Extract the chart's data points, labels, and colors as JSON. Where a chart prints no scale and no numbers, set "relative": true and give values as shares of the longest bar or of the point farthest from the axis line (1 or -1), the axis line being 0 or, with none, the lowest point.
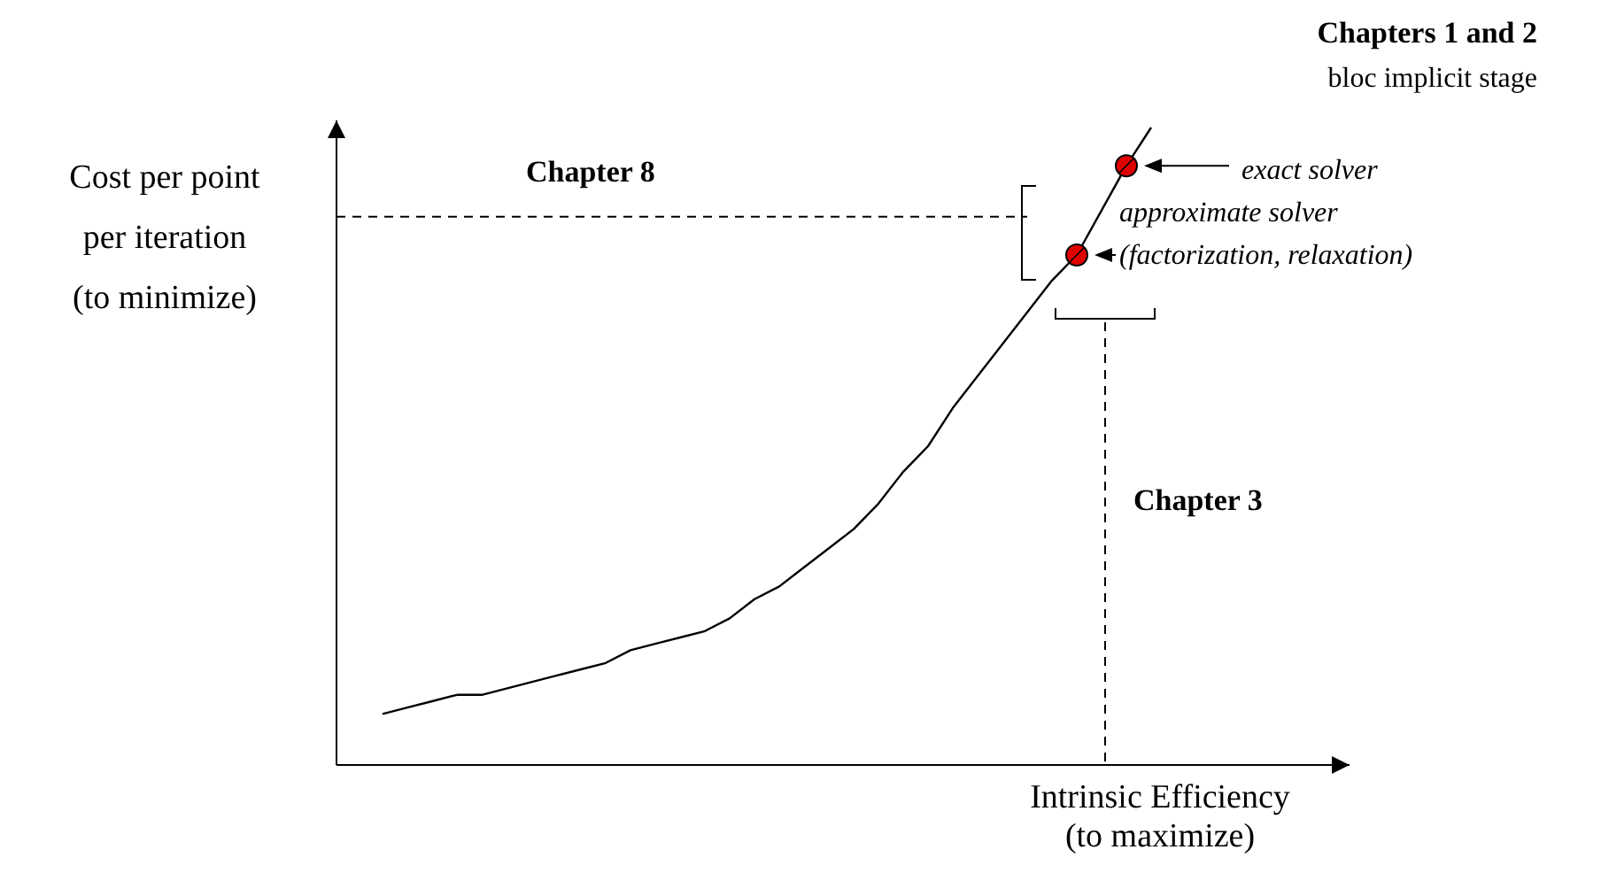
{
  "chart_data": {
    "type": "line",
    "relative": true,
    "xlabel": "Intrinsic Efficiency\n(to maximize)",
    "ylabel": "Cost per point\nper iteration\n(to minimize)",
    "categories": [
      null,
      null,
      null,
      null,
      null,
      null,
      null,
      null,
      null,
      null,
      null,
      null,
      null,
      null,
      null,
      null,
      null,
      null,
      null,
      null,
      null,
      null,
      null,
      null,
      null,
      null,
      null,
      null,
      null,
      null,
      null,
      null
    ],
    "series": [
      {
        "color": "#000000",
        "values": [
          0.08,
          0.09,
          0.1,
          0.11,
          0.11,
          0.12,
          0.13,
          0.14,
          0.15,
          0.16,
          0.18,
          0.19,
          0.2,
          0.21,
          0.23,
          0.26,
          0.28,
          0.31,
          0.34,
          0.37,
          0.41,
          0.46,
          0.5,
          0.56,
          0.61,
          0.66,
          0.71,
          0.76,
          0.8,
          0.87,
          0.94,
          1
        ]
      }
    ],
    "ref_lines": [
      {
        "axis": "y",
        "value": 0.86,
        "label": "Chapter 8",
        "line_style": "dashed"
      }
    ],
    "annotations": [
      "Chapters 1 and 2",
      "bloc implicit stage",
      "exact solver",
      "approximate solver",
      "(factorization, relaxation)",
      "Chapter 3"
    ],
    "marker": "none"
  }
}
